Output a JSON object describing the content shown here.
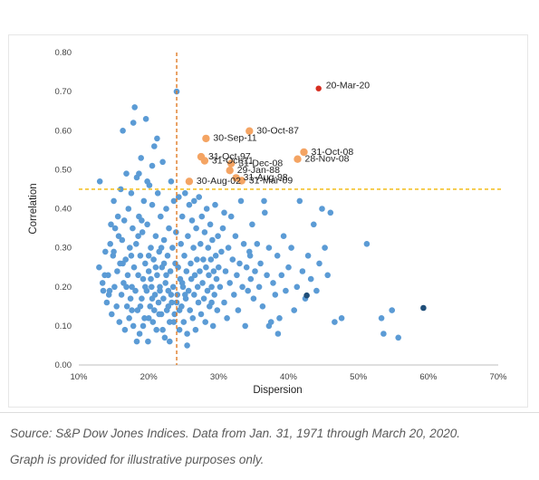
{
  "chart_data": {
    "type": "scatter",
    "xlabel": "Dispersion",
    "ylabel": "Correlation",
    "xlim": [
      0.1,
      0.7
    ],
    "ylim": [
      0.0,
      0.8
    ],
    "x_ticks": [
      {
        "value": 0.1,
        "label": "10%"
      },
      {
        "value": 0.2,
        "label": "20%"
      },
      {
        "value": 0.3,
        "label": "30%"
      },
      {
        "value": 0.4,
        "label": "40%"
      },
      {
        "value": 0.5,
        "label": "50%"
      },
      {
        "value": 0.6,
        "label": "60%"
      },
      {
        "value": 0.7,
        "label": "70%"
      }
    ],
    "y_ticks": [
      {
        "value": 0.0,
        "label": "0.00"
      },
      {
        "value": 0.1,
        "label": "0.10"
      },
      {
        "value": 0.2,
        "label": "0.20"
      },
      {
        "value": 0.3,
        "label": "0.30"
      },
      {
        "value": 0.4,
        "label": "0.40"
      },
      {
        "value": 0.5,
        "label": "0.50"
      },
      {
        "value": 0.6,
        "label": "0.60"
      },
      {
        "value": 0.7,
        "label": "0.70"
      },
      {
        "value": 0.8,
        "label": "0.80"
      }
    ],
    "reference_lines": [
      {
        "orientation": "vertical",
        "value": 0.24,
        "style": "dashed",
        "color": "#e07b25"
      },
      {
        "orientation": "horizontal",
        "value": 0.45,
        "style": "dashed",
        "color": "#f2b705"
      }
    ],
    "colors": {
      "base": "#5b9bd5",
      "highlight": "#f4a463",
      "latest": "#d62d20",
      "dark": "#1f4e79"
    },
    "highlighted_points": [
      {
        "label": "20-Mar-20",
        "x": 0.443,
        "y": 0.708,
        "color": "#d62d20"
      },
      {
        "label": "30-Oct-87",
        "x": 0.344,
        "y": 0.599,
        "color": "#f4a463"
      },
      {
        "label": "30-Sep-11",
        "x": 0.282,
        "y": 0.58,
        "color": "#f4a463"
      },
      {
        "label": "31-Oct-08",
        "x": 0.422,
        "y": 0.545,
        "color": "#f4a463"
      },
      {
        "label": "31-Oct-97",
        "x": 0.275,
        "y": 0.533,
        "color": "#f4a463"
      },
      {
        "label": "28-Nov-08",
        "x": 0.413,
        "y": 0.527,
        "color": "#f4a463"
      },
      {
        "label": "31-Oct-11",
        "x": 0.28,
        "y": 0.523,
        "color": "#f4a463"
      },
      {
        "label": "31-Dec-08",
        "x": 0.318,
        "y": 0.516,
        "color": "#f4a463"
      },
      {
        "label": "29-Jan-88",
        "x": 0.316,
        "y": 0.498,
        "color": "#f4a463"
      },
      {
        "label": "31-Aug-98",
        "x": 0.325,
        "y": 0.479,
        "color": "#f4a463"
      },
      {
        "label": "30-Aug-02",
        "x": 0.258,
        "y": 0.47,
        "color": "#f4a463"
      },
      {
        "label": "31-Mar-09",
        "x": 0.333,
        "y": 0.472,
        "color": "#f4a463"
      }
    ],
    "dark_points": [
      {
        "x": 0.426,
        "y": 0.178
      },
      {
        "x": 0.593,
        "y": 0.146
      }
    ],
    "scatter_points": [
      [
        0.13,
        0.47
      ],
      [
        0.129,
        0.25
      ],
      [
        0.135,
        0.19
      ],
      [
        0.138,
        0.29
      ],
      [
        0.14,
        0.16
      ],
      [
        0.142,
        0.23
      ],
      [
        0.144,
        0.19
      ],
      [
        0.145,
        0.31
      ],
      [
        0.147,
        0.13
      ],
      [
        0.149,
        0.28
      ],
      [
        0.15,
        0.42
      ],
      [
        0.151,
        0.2
      ],
      [
        0.152,
        0.35
      ],
      [
        0.154,
        0.15
      ],
      [
        0.155,
        0.24
      ],
      [
        0.156,
        0.38
      ],
      [
        0.158,
        0.11
      ],
      [
        0.159,
        0.26
      ],
      [
        0.16,
        0.45
      ],
      [
        0.161,
        0.18
      ],
      [
        0.162,
        0.32
      ],
      [
        0.163,
        0.6
      ],
      [
        0.164,
        0.21
      ],
      [
        0.165,
        0.37
      ],
      [
        0.166,
        0.09
      ],
      [
        0.167,
        0.27
      ],
      [
        0.168,
        0.49
      ],
      [
        0.169,
        0.15
      ],
      [
        0.17,
        0.23
      ],
      [
        0.171,
        0.4
      ],
      [
        0.172,
        0.12
      ],
      [
        0.173,
        0.3
      ],
      [
        0.174,
        0.17
      ],
      [
        0.175,
        0.44
      ],
      [
        0.176,
        0.2
      ],
      [
        0.177,
        0.35
      ],
      [
        0.178,
        0.1
      ],
      [
        0.179,
        0.25
      ],
      [
        0.18,
        0.66
      ],
      [
        0.181,
        0.19
      ],
      [
        0.182,
        0.31
      ],
      [
        0.183,
        0.48
      ],
      [
        0.184,
        0.14
      ],
      [
        0.185,
        0.23
      ],
      [
        0.186,
        0.38
      ],
      [
        0.187,
        0.08
      ],
      [
        0.188,
        0.28
      ],
      [
        0.189,
        0.53
      ],
      [
        0.19,
        0.17
      ],
      [
        0.191,
        0.34
      ],
      [
        0.192,
        0.22
      ],
      [
        0.193,
        0.42
      ],
      [
        0.194,
        0.12
      ],
      [
        0.195,
        0.26
      ],
      [
        0.196,
        0.63
      ],
      [
        0.197,
        0.19
      ],
      [
        0.198,
        0.36
      ],
      [
        0.199,
        0.06
      ],
      [
        0.2,
        0.24
      ],
      [
        0.201,
        0.46
      ],
      [
        0.202,
        0.15
      ],
      [
        0.203,
        0.3
      ],
      [
        0.204,
        0.2
      ],
      [
        0.205,
        0.41
      ],
      [
        0.206,
        0.11
      ],
      [
        0.207,
        0.27
      ],
      [
        0.208,
        0.56
      ],
      [
        0.209,
        0.18
      ],
      [
        0.21,
        0.33
      ],
      [
        0.211,
        0.09
      ],
      [
        0.212,
        0.23
      ],
      [
        0.213,
        0.44
      ],
      [
        0.214,
        0.16
      ],
      [
        0.215,
        0.29
      ],
      [
        0.216,
        0.2
      ],
      [
        0.217,
        0.38
      ],
      [
        0.218,
        0.13
      ],
      [
        0.219,
        0.25
      ],
      [
        0.22,
        0.52
      ],
      [
        0.221,
        0.17
      ],
      [
        0.222,
        0.32
      ],
      [
        0.223,
        0.07
      ],
      [
        0.224,
        0.21
      ],
      [
        0.225,
        0.4
      ],
      [
        0.226,
        0.14
      ],
      [
        0.227,
        0.28
      ],
      [
        0.228,
        0.19
      ],
      [
        0.229,
        0.35
      ],
      [
        0.23,
        0.11
      ],
      [
        0.231,
        0.24
      ],
      [
        0.232,
        0.47
      ],
      [
        0.233,
        0.16
      ],
      [
        0.234,
        0.3
      ],
      [
        0.235,
        0.2
      ],
      [
        0.236,
        0.42
      ],
      [
        0.237,
        0.13
      ],
      [
        0.238,
        0.26
      ],
      [
        0.239,
        0.34
      ],
      [
        0.24,
        0.7
      ],
      [
        0.241,
        0.18
      ],
      [
        0.242,
        0.25
      ],
      [
        0.243,
        0.43
      ],
      [
        0.244,
        0.09
      ],
      [
        0.245,
        0.22
      ],
      [
        0.246,
        0.31
      ],
      [
        0.247,
        0.15
      ],
      [
        0.248,
        0.38
      ],
      [
        0.249,
        0.2
      ],
      [
        0.25,
        0.11
      ],
      [
        0.251,
        0.28
      ],
      [
        0.252,
        0.44
      ],
      [
        0.253,
        0.17
      ],
      [
        0.254,
        0.24
      ],
      [
        0.255,
        0.05
      ],
      [
        0.256,
        0.33
      ],
      [
        0.257,
        0.19
      ],
      [
        0.258,
        0.41
      ],
      [
        0.259,
        0.14
      ],
      [
        0.26,
        0.26
      ],
      [
        0.261,
        0.22
      ],
      [
        0.262,
        0.37
      ],
      [
        0.263,
        0.12
      ],
      [
        0.264,
        0.3
      ],
      [
        0.265,
        0.18
      ],
      [
        0.266,
        0.23
      ],
      [
        0.267,
        0.09
      ],
      [
        0.268,
        0.35
      ],
      [
        0.269,
        0.27
      ],
      [
        0.27,
        0.2
      ],
      [
        0.271,
        0.16
      ],
      [
        0.272,
        0.43
      ],
      [
        0.273,
        0.24
      ],
      [
        0.274,
        0.31
      ],
      [
        0.275,
        0.13
      ],
      [
        0.276,
        0.38
      ],
      [
        0.277,
        0.21
      ],
      [
        0.278,
        0.27
      ],
      [
        0.279,
        0.17
      ],
      [
        0.28,
        0.34
      ],
      [
        0.281,
        0.11
      ],
      [
        0.282,
        0.25
      ],
      [
        0.283,
        0.4
      ],
      [
        0.284,
        0.19
      ],
      [
        0.285,
        0.3
      ],
      [
        0.286,
        0.23
      ],
      [
        0.287,
        0.15
      ],
      [
        0.288,
        0.36
      ],
      [
        0.289,
        0.27
      ],
      [
        0.29,
        0.2
      ],
      [
        0.291,
        0.32
      ],
      [
        0.292,
        0.1
      ],
      [
        0.293,
        0.24
      ],
      [
        0.294,
        0.18
      ],
      [
        0.295,
        0.41
      ],
      [
        0.296,
        0.28
      ],
      [
        0.297,
        0.22
      ],
      [
        0.298,
        0.14
      ],
      [
        0.299,
        0.33
      ],
      [
        0.3,
        0.25
      ],
      [
        0.302,
        0.2
      ],
      [
        0.304,
        0.29
      ],
      [
        0.306,
        0.35
      ],
      [
        0.308,
        0.16
      ],
      [
        0.31,
        0.24
      ],
      [
        0.312,
        0.12
      ],
      [
        0.314,
        0.3
      ],
      [
        0.316,
        0.21
      ],
      [
        0.318,
        0.38
      ],
      [
        0.32,
        0.27
      ],
      [
        0.322,
        0.18
      ],
      [
        0.324,
        0.33
      ],
      [
        0.326,
        0.23
      ],
      [
        0.328,
        0.14
      ],
      [
        0.33,
        0.26
      ],
      [
        0.332,
        0.42
      ],
      [
        0.334,
        0.2
      ],
      [
        0.336,
        0.31
      ],
      [
        0.338,
        0.1
      ],
      [
        0.34,
        0.25
      ],
      [
        0.342,
        0.19
      ],
      [
        0.344,
        0.29
      ],
      [
        0.346,
        0.22
      ],
      [
        0.348,
        0.36
      ],
      [
        0.35,
        0.17
      ],
      [
        0.352,
        0.24
      ],
      [
        0.355,
        0.31
      ],
      [
        0.358,
        0.2
      ],
      [
        0.36,
        0.26
      ],
      [
        0.363,
        0.15
      ],
      [
        0.366,
        0.39
      ],
      [
        0.369,
        0.23
      ],
      [
        0.372,
        0.3
      ],
      [
        0.375,
        0.11
      ],
      [
        0.378,
        0.21
      ],
      [
        0.381,
        0.18
      ],
      [
        0.384,
        0.28
      ],
      [
        0.387,
        0.12
      ],
      [
        0.39,
        0.23
      ],
      [
        0.393,
        0.33
      ],
      [
        0.396,
        0.19
      ],
      [
        0.4,
        0.25
      ],
      [
        0.404,
        0.3
      ],
      [
        0.408,
        0.14
      ],
      [
        0.412,
        0.2
      ],
      [
        0.416,
        0.42
      ],
      [
        0.42,
        0.24
      ],
      [
        0.424,
        0.17
      ],
      [
        0.428,
        0.28
      ],
      [
        0.432,
        0.22
      ],
      [
        0.436,
        0.36
      ],
      [
        0.44,
        0.19
      ],
      [
        0.444,
        0.26
      ],
      [
        0.448,
        0.4
      ],
      [
        0.452,
        0.3
      ],
      [
        0.456,
        0.23
      ],
      [
        0.46,
        0.39
      ],
      [
        0.466,
        0.11
      ],
      [
        0.476,
        0.12
      ],
      [
        0.512,
        0.31
      ],
      [
        0.533,
        0.12
      ],
      [
        0.536,
        0.08
      ],
      [
        0.548,
        0.14
      ],
      [
        0.557,
        0.07
      ],
      [
        0.372,
        0.1
      ],
      [
        0.385,
        0.08
      ],
      [
        0.365,
        0.42
      ],
      [
        0.345,
        0.28
      ],
      [
        0.308,
        0.39
      ],
      [
        0.29,
        0.16
      ],
      [
        0.265,
        0.42
      ],
      [
        0.255,
        0.08
      ],
      [
        0.23,
        0.06
      ],
      [
        0.212,
        0.58
      ],
      [
        0.205,
        0.51
      ],
      [
        0.198,
        0.47
      ],
      [
        0.19,
        0.37
      ],
      [
        0.178,
        0.62
      ],
      [
        0.186,
        0.49
      ],
      [
        0.175,
        0.28
      ],
      [
        0.168,
        0.2
      ],
      [
        0.215,
        0.13
      ],
      [
        0.22,
        0.09
      ],
      [
        0.228,
        0.15
      ],
      [
        0.236,
        0.11
      ],
      [
        0.244,
        0.14
      ],
      [
        0.252,
        0.18
      ],
      [
        0.183,
        0.06
      ],
      [
        0.176,
        0.14
      ],
      [
        0.163,
        0.26
      ],
      [
        0.157,
        0.33
      ],
      [
        0.15,
        0.29
      ],
      [
        0.146,
        0.36
      ],
      [
        0.143,
        0.18
      ],
      [
        0.137,
        0.23
      ],
      [
        0.134,
        0.21
      ],
      [
        0.2,
        0.28
      ],
      [
        0.195,
        0.2
      ],
      [
        0.205,
        0.17
      ],
      [
        0.21,
        0.25
      ],
      [
        0.225,
        0.23
      ],
      [
        0.232,
        0.18
      ],
      [
        0.24,
        0.16
      ],
      [
        0.248,
        0.21
      ],
      [
        0.188,
        0.15
      ],
      [
        0.192,
        0.1
      ],
      [
        0.2,
        0.12
      ],
      [
        0.208,
        0.14
      ],
      [
        0.216,
        0.19
      ],
      [
        0.222,
        0.26
      ],
      [
        0.203,
        0.22
      ],
      [
        0.218,
        0.3
      ],
      [
        0.185,
        0.33
      ]
    ],
    "caption_source": "Source: S&P Dow Jones Indices. Data from Jan. 31, 1971 through March 20, 2020.",
    "caption_note": "Graph is provided for illustrative purposes only."
  }
}
